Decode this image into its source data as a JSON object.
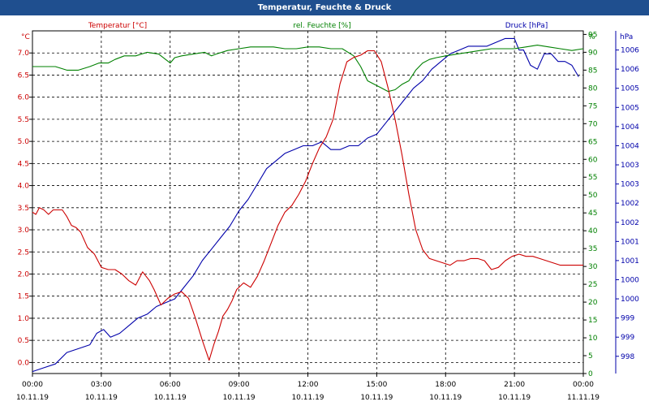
{
  "window": {
    "title": "Temperatur, Feuchte & Druck"
  },
  "chart_data": {
    "type": "line",
    "title": "Temperatur, Feuchte & Druck",
    "grid": true,
    "x_labels": [
      {
        "time": "00:00",
        "date": "10.11.19"
      },
      {
        "time": "03:00",
        "date": "10.11.19"
      },
      {
        "time": "06:00",
        "date": "10.11.19"
      },
      {
        "time": "09:00",
        "date": "10.11.19"
      },
      {
        "time": "12:00",
        "date": "10.11.19"
      },
      {
        "time": "15:00",
        "date": "10.11.19"
      },
      {
        "time": "18:00",
        "date": "10.11.19"
      },
      {
        "time": "21:00",
        "date": "10.11.19"
      },
      {
        "time": "00:00",
        "date": "11.11.19"
      }
    ],
    "x_range_hours": [
      0,
      24
    ],
    "axes": {
      "temperature": {
        "unit_label": "°C",
        "range": [
          -0.25,
          7.5
        ],
        "ticks": [
          0.0,
          0.5,
          1.0,
          1.5,
          2.0,
          2.5,
          3.0,
          3.5,
          4.0,
          4.5,
          5.0,
          5.5,
          6.0,
          6.5,
          7.0
        ],
        "tick_labels": [
          "0.0",
          "0.5",
          "1.0",
          "1.5",
          "2.0",
          "2.5",
          "3.0",
          "3.5",
          "4.0",
          "4.5",
          "5.0",
          "5.5",
          "6.0",
          "6.5",
          "7.0"
        ],
        "color": "#cc0000"
      },
      "humidity": {
        "unit_label": "%",
        "range": [
          0,
          96
        ],
        "ticks": [
          0,
          5,
          10,
          15,
          20,
          25,
          30,
          35,
          40,
          45,
          50,
          55,
          60,
          65,
          70,
          75,
          80,
          85,
          90,
          95
        ],
        "tick_labels": [
          "0",
          "5",
          "10",
          "15",
          "20",
          "25",
          "30",
          "35",
          "40",
          "45",
          "50",
          "55",
          "60",
          "65",
          "70",
          "75",
          "80",
          "85",
          "90",
          "95"
        ],
        "color": "#008000"
      },
      "pressure": {
        "unit_label": "hPa",
        "range": [
          997.55,
          1006.5
        ],
        "ticks": [
          998.0,
          998.5,
          999.0,
          999.5,
          1000.0,
          1000.5,
          1001.0,
          1001.5,
          1002.0,
          1002.5,
          1003.0,
          1003.5,
          1004.0,
          1004.5,
          1005.0,
          1005.5,
          1006.0
        ],
        "tick_labels": [
          "998",
          "999",
          "999",
          "1000",
          "1000",
          "1001",
          "1001",
          "1002",
          "1002",
          "1003",
          "1003",
          "1004",
          "1004",
          "1005",
          "1005",
          "1006",
          "1006"
        ],
        "color": "#0000aa"
      }
    },
    "series": [
      {
        "name": "Temperatur [°C]",
        "axis": "temperature",
        "color": "#cc0000",
        "x": [
          0,
          0.15,
          0.3,
          0.5,
          0.7,
          0.9,
          1.1,
          1.3,
          1.5,
          1.7,
          1.9,
          2.1,
          2.4,
          2.7,
          3.0,
          3.3,
          3.6,
          3.9,
          4.2,
          4.5,
          4.8,
          5.1,
          5.3,
          5.6,
          5.9,
          6.2,
          6.5,
          6.8,
          7.1,
          7.4,
          7.7,
          7.9,
          8.1,
          8.3,
          8.5,
          8.7,
          8.9,
          9.2,
          9.5,
          9.8,
          10.1,
          10.4,
          10.7,
          11.0,
          11.3,
          11.6,
          11.9,
          12.2,
          12.5,
          12.8,
          13.1,
          13.4,
          13.7,
          14.0,
          14.3,
          14.6,
          14.9,
          15.2,
          15.5,
          15.8,
          16.1,
          16.4,
          16.7,
          17.0,
          17.3,
          17.6,
          17.9,
          18.2,
          18.5,
          18.8,
          19.1,
          19.4,
          19.7,
          20.0,
          20.3,
          20.6,
          20.9,
          21.2,
          21.5,
          21.8,
          22.1,
          22.4,
          22.7,
          23.0,
          23.3,
          23.6,
          23.9
        ],
        "values": [
          3.4,
          3.35,
          3.5,
          3.45,
          3.35,
          3.45,
          3.45,
          3.45,
          3.3,
          3.1,
          3.05,
          2.95,
          2.6,
          2.45,
          2.15,
          2.1,
          2.1,
          2.0,
          1.85,
          1.75,
          2.05,
          1.85,
          1.65,
          1.3,
          1.45,
          1.55,
          1.6,
          1.45,
          1.0,
          0.5,
          0.05,
          0.4,
          0.7,
          1.05,
          1.2,
          1.4,
          1.65,
          1.8,
          1.7,
          1.95,
          2.3,
          2.7,
          3.1,
          3.4,
          3.55,
          3.8,
          4.1,
          4.5,
          4.85,
          5.1,
          5.5,
          6.3,
          6.8,
          6.9,
          6.95,
          7.05,
          7.05,
          6.8,
          6.2,
          5.5,
          4.7,
          3.8,
          3.0,
          2.55,
          2.35,
          2.3,
          2.25,
          2.2,
          2.3,
          2.3,
          2.35,
          2.35,
          2.3,
          2.1,
          2.15,
          2.3,
          2.4,
          2.45,
          2.4,
          2.4,
          2.35,
          2.3,
          2.25,
          2.2,
          2.2,
          2.2,
          2.2
        ],
        "x_end": 24,
        "value_end": 2.2
      },
      {
        "name": "rel. Feuchte [%]",
        "axis": "humidity",
        "color": "#008000",
        "x": [
          0,
          0.5,
          1.0,
          1.5,
          2.0,
          2.5,
          2.9,
          3.3,
          3.6,
          4.0,
          4.5,
          5.0,
          5.5,
          5.8,
          6.0,
          6.2,
          6.5,
          7.0,
          7.5,
          7.8,
          8.0,
          8.5,
          9.0,
          9.5,
          10.0,
          10.5,
          11.0,
          11.5,
          12.0,
          12.5,
          13.0,
          13.5,
          14.0,
          14.3,
          14.6,
          14.9,
          15.2,
          15.5,
          15.8,
          16.1,
          16.4,
          16.7,
          17.0,
          17.3,
          17.6,
          18.0,
          18.5,
          19.0,
          19.5,
          20.0,
          20.5,
          21.0,
          21.5,
          22.0,
          22.5,
          23.0,
          23.5,
          24.0
        ],
        "values": [
          86,
          86,
          86,
          85,
          85,
          86,
          87,
          87,
          88,
          89,
          89,
          90,
          89.5,
          88,
          87,
          88.5,
          89,
          89.5,
          90,
          89,
          89.5,
          90.5,
          91,
          91.5,
          91.5,
          91.5,
          91,
          91,
          91.5,
          91.5,
          91,
          91,
          89,
          86,
          82,
          81,
          80,
          79,
          79.5,
          81,
          82,
          85,
          87,
          88,
          88.5,
          89,
          89.5,
          90,
          90.5,
          91,
          91,
          91,
          91.5,
          92,
          91.5,
          91,
          90.5,
          91
        ]
      },
      {
        "name": "Druck [hPa]",
        "axis": "pressure",
        "color": "#0000aa",
        "x": [
          0,
          0.5,
          1.0,
          1.5,
          2.0,
          2.5,
          2.8,
          3.1,
          3.4,
          3.8,
          4.2,
          4.6,
          5.0,
          5.4,
          5.8,
          6.2,
          6.6,
          7.0,
          7.4,
          7.8,
          8.2,
          8.6,
          9.0,
          9.4,
          9.8,
          10.2,
          10.6,
          11.0,
          11.4,
          11.8,
          12.2,
          12.6,
          13.0,
          13.4,
          13.8,
          14.2,
          14.6,
          15.0,
          15.4,
          15.8,
          16.2,
          16.6,
          17.0,
          17.4,
          17.8,
          18.2,
          18.6,
          19.0,
          19.4,
          19.8,
          20.2,
          20.6,
          21.0,
          21.2,
          21.4,
          21.7,
          22.0,
          22.3,
          22.6,
          22.9,
          23.2,
          23.5,
          23.8
        ],
        "values": [
          997.6,
          997.7,
          997.8,
          998.1,
          998.2,
          998.3,
          998.6,
          998.7,
          998.5,
          998.6,
          998.8,
          999.0,
          999.1,
          999.3,
          999.4,
          999.5,
          999.8,
          1000.1,
          1000.5,
          1000.8,
          1001.1,
          1001.4,
          1001.8,
          1002.1,
          1002.5,
          1002.9,
          1003.1,
          1003.3,
          1003.4,
          1003.5,
          1003.5,
          1003.6,
          1003.4,
          1003.4,
          1003.5,
          1003.5,
          1003.7,
          1003.8,
          1004.1,
          1004.4,
          1004.7,
          1005.0,
          1005.2,
          1005.5,
          1005.7,
          1005.9,
          1006.0,
          1006.1,
          1006.1,
          1006.1,
          1006.2,
          1006.3,
          1006.3,
          1006.0,
          1006.0,
          1005.6,
          1005.5,
          1005.9,
          1005.9,
          1005.7,
          1005.7,
          1005.6,
          1005.3
        ]
      }
    ]
  }
}
